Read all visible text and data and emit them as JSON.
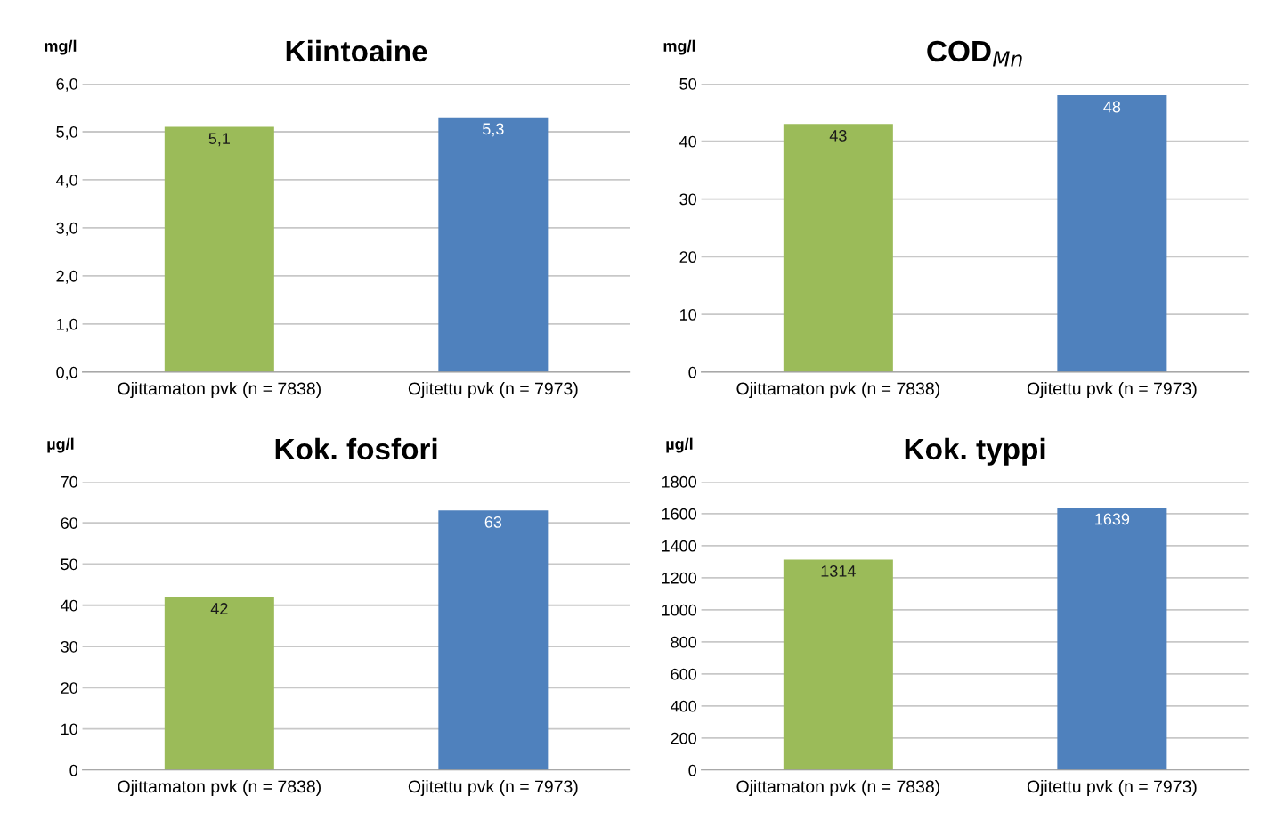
{
  "chart_data": [
    {
      "type": "bar",
      "title": "Kiintoaine",
      "ylabel": "mg/l",
      "categories": [
        "Ojittamaton pvk (n = 7838)",
        "Ojitettu pvk (n = 7973)"
      ],
      "values": [
        5.1,
        5.3
      ],
      "value_labels": [
        "5,1",
        "5,3"
      ],
      "colors": [
        "#9bbb59",
        "#4f81bd"
      ],
      "ylim": [
        0,
        6
      ],
      "yticks": [
        {
          "value": 0,
          "label": "0,0"
        },
        {
          "value": 1,
          "label": "1,0"
        },
        {
          "value": 2,
          "label": "2,0"
        },
        {
          "value": 3,
          "label": "3,0"
        },
        {
          "value": 4,
          "label": "4,0"
        },
        {
          "value": 5,
          "label": "5,0"
        },
        {
          "value": 6,
          "label": "6,0"
        }
      ],
      "grid": "y",
      "legend": false
    },
    {
      "type": "bar",
      "title": "COD$_{Mn}$",
      "ylabel": "mg/l",
      "categories": [
        "Ojittamaton pvk (n = 7838)",
        "Ojitettu pvk (n = 7973)"
      ],
      "values": [
        43,
        48
      ],
      "data_labels": true,
      "colors": [
        "#9bbb59",
        "#4f81bd"
      ],
      "ylim": [
        0,
        50
      ],
      "yticks": [
        0,
        10,
        20,
        30,
        40,
        50
      ],
      "grid": "y",
      "legend": false
    },
    {
      "type": "bar",
      "title": "Kok. fosfori",
      "ylabel": "µg/l",
      "categories": [
        "Ojittamaton pvk (n = 7838)",
        "Ojitettu pvk (n = 7973)"
      ],
      "values": [
        42,
        63
      ],
      "data_labels": true,
      "colors": [
        "#9bbb59",
        "#4f81bd"
      ],
      "ylim": [
        0,
        70
      ],
      "yticks": [
        0,
        10,
        20,
        30,
        40,
        50,
        60,
        70
      ],
      "grid": "y",
      "legend": false
    },
    {
      "type": "bar",
      "title": "Kok. typpi",
      "ylabel": "µg/l",
      "categories": [
        "Ojittamaton pvk (n = 7838)",
        "Ojitettu pvk (n = 7973)"
      ],
      "values": [
        1314,
        1639
      ],
      "data_labels": true,
      "colors": [
        "#9bbb59",
        "#4f81bd"
      ],
      "ylim": [
        0,
        1800
      ],
      "yticks": [
        0,
        200,
        400,
        600,
        800,
        1000,
        1200,
        1400,
        1600,
        1800
      ],
      "grid": "y",
      "legend": false
    }
  ]
}
